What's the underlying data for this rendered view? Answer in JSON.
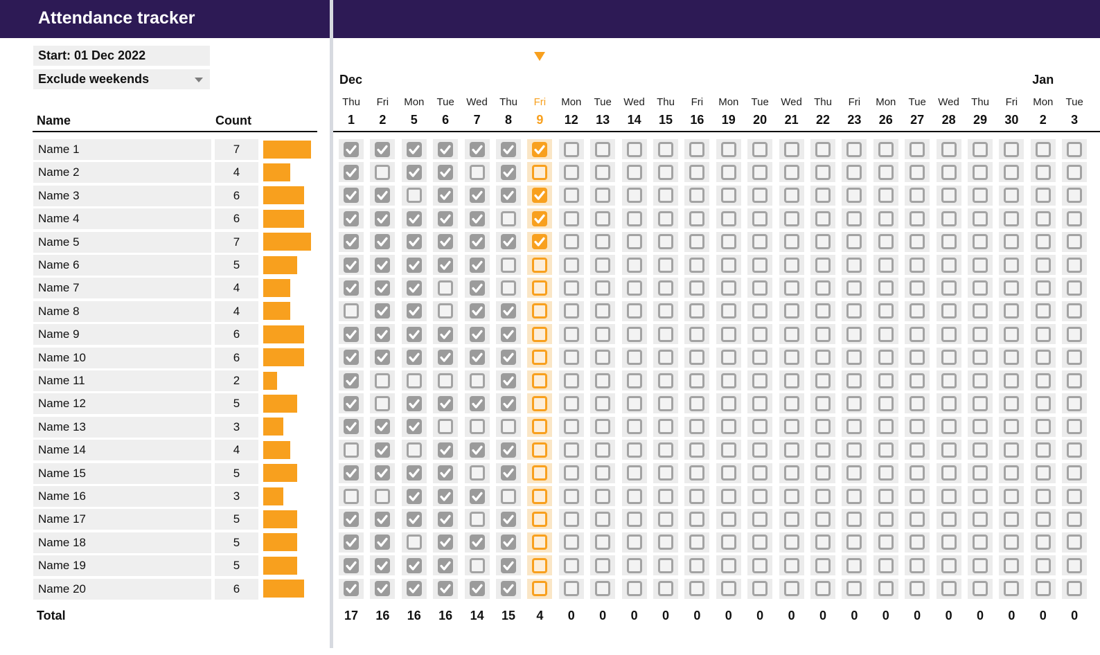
{
  "header": {
    "title": "Attendance tracker"
  },
  "controls": {
    "start_label": "Start: 01 Dec 2022",
    "exclude_dropdown": {
      "value": "Exclude weekends"
    }
  },
  "table": {
    "name_header": "Name",
    "count_header": "Count",
    "total_label": "Total"
  },
  "people": [
    {
      "name": "Name 1",
      "count": 7,
      "checks": "111111100000000000000000"
    },
    {
      "name": "Name 2",
      "count": 4,
      "checks": "101101000000000000000000"
    },
    {
      "name": "Name 3",
      "count": 6,
      "checks": "110111100000000000000000"
    },
    {
      "name": "Name 4",
      "count": 6,
      "checks": "111110100000000000000000"
    },
    {
      "name": "Name 5",
      "count": 7,
      "checks": "111111100000000000000000"
    },
    {
      "name": "Name 6",
      "count": 5,
      "checks": "111110000000000000000000"
    },
    {
      "name": "Name 7",
      "count": 4,
      "checks": "111010000000000000000000"
    },
    {
      "name": "Name 8",
      "count": 4,
      "checks": "011011000000000000000000"
    },
    {
      "name": "Name 9",
      "count": 6,
      "checks": "111111000000000000000000"
    },
    {
      "name": "Name 10",
      "count": 6,
      "checks": "111111000000000000000000"
    },
    {
      "name": "Name 11",
      "count": 2,
      "checks": "100001000000000000000000"
    },
    {
      "name": "Name 12",
      "count": 5,
      "checks": "101111000000000000000000"
    },
    {
      "name": "Name 13",
      "count": 3,
      "checks": "111000000000000000000000"
    },
    {
      "name": "Name 14",
      "count": 4,
      "checks": "010111000000000000000000"
    },
    {
      "name": "Name 15",
      "count": 5,
      "checks": "111101000000000000000000"
    },
    {
      "name": "Name 16",
      "count": 3,
      "checks": "001110000000000000000000"
    },
    {
      "name": "Name 17",
      "count": 5,
      "checks": "111101000000000000000000"
    },
    {
      "name": "Name 18",
      "count": 5,
      "checks": "110111000000000000000000"
    },
    {
      "name": "Name 19",
      "count": 5,
      "checks": "111101000000000000000000"
    },
    {
      "name": "Name 20",
      "count": 6,
      "checks": "111111000000000000000000"
    }
  ],
  "calendar": {
    "months": [
      {
        "label": "Dec",
        "col": 0
      },
      {
        "label": "Jan",
        "col": 22
      }
    ],
    "marker_col": 6,
    "highlight_col": 6,
    "columns": [
      {
        "day": "Thu",
        "date": "1",
        "total": "17"
      },
      {
        "day": "Fri",
        "date": "2",
        "total": "16"
      },
      {
        "day": "Mon",
        "date": "5",
        "total": "16"
      },
      {
        "day": "Tue",
        "date": "6",
        "total": "16"
      },
      {
        "day": "Wed",
        "date": "7",
        "total": "14"
      },
      {
        "day": "Thu",
        "date": "8",
        "total": "15"
      },
      {
        "day": "Fri",
        "date": "9",
        "total": "4"
      },
      {
        "day": "Mon",
        "date": "12",
        "total": "0"
      },
      {
        "day": "Tue",
        "date": "13",
        "total": "0"
      },
      {
        "day": "Wed",
        "date": "14",
        "total": "0"
      },
      {
        "day": "Thu",
        "date": "15",
        "total": "0"
      },
      {
        "day": "Fri",
        "date": "16",
        "total": "0"
      },
      {
        "day": "Mon",
        "date": "19",
        "total": "0"
      },
      {
        "day": "Tue",
        "date": "20",
        "total": "0"
      },
      {
        "day": "Wed",
        "date": "21",
        "total": "0"
      },
      {
        "day": "Thu",
        "date": "22",
        "total": "0"
      },
      {
        "day": "Fri",
        "date": "23",
        "total": "0"
      },
      {
        "day": "Mon",
        "date": "26",
        "total": "0"
      },
      {
        "day": "Tue",
        "date": "27",
        "total": "0"
      },
      {
        "day": "Wed",
        "date": "28",
        "total": "0"
      },
      {
        "day": "Thu",
        "date": "29",
        "total": "0"
      },
      {
        "day": "Fri",
        "date": "30",
        "total": "0"
      },
      {
        "day": "Mon",
        "date": "2",
        "total": "0"
      },
      {
        "day": "Tue",
        "date": "3",
        "total": "0"
      }
    ]
  },
  "icons": {
    "dropdown_arrow": "▾",
    "column_marker": "▼",
    "checkmark": "✓"
  },
  "colors": {
    "header_purple": "#2D1A55",
    "accent_orange": "#F8A01E",
    "highlight_cell_bg": "#FAE6C6",
    "highlight_box_bg": "#FCEEDA",
    "checkbox_gray": "#9B9B9B",
    "cell_gray": "#ECECEC",
    "box_gray": "#EFEFEF"
  }
}
